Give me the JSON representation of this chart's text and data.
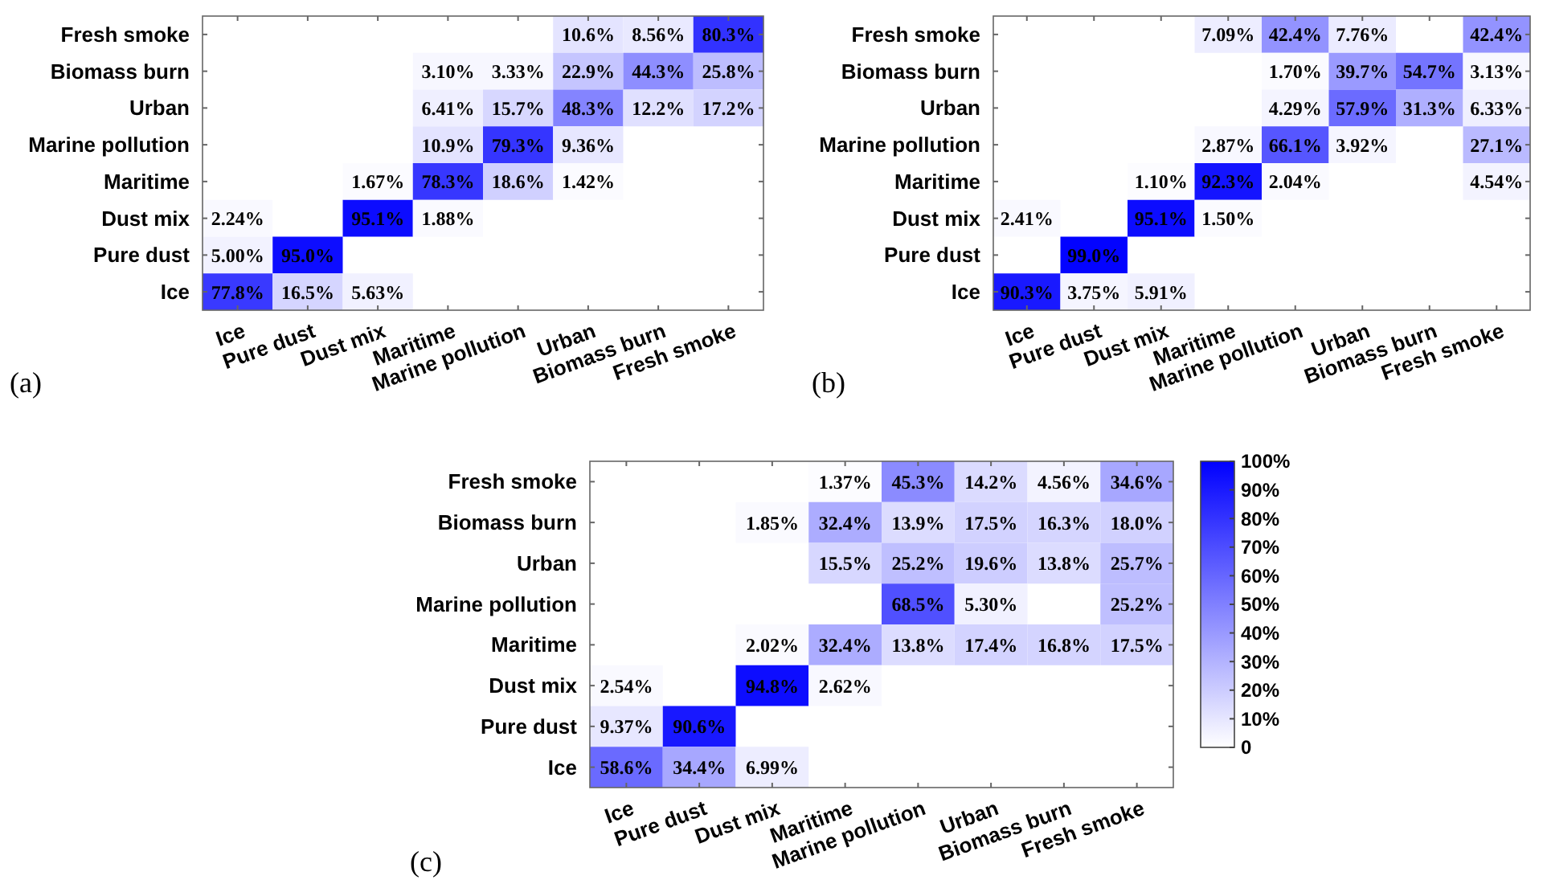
{
  "chart_data": [
    {
      "type": "heatmap",
      "annotations": [
        "(a)"
      ],
      "categories": [
        "Ice",
        "Pure dust",
        "Dust mix",
        "Maritime",
        "Marine pollution",
        "Urban",
        "Biomass burn",
        "Fresh smoke"
      ],
      "y_categories": [
        "Fresh smoke",
        "Biomass burn",
        "Urban",
        "Marine pollution",
        "Maritime",
        "Dust mix",
        "Pure dust",
        "Ice"
      ],
      "cells": [
        [
          null,
          null,
          null,
          null,
          null,
          10.6,
          8.56,
          80.3
        ],
        [
          null,
          null,
          null,
          3.1,
          3.33,
          22.9,
          44.3,
          25.8
        ],
        [
          null,
          null,
          null,
          6.41,
          15.7,
          48.3,
          12.2,
          17.2
        ],
        [
          null,
          null,
          null,
          10.9,
          79.3,
          9.36,
          null,
          null
        ],
        [
          null,
          null,
          1.67,
          78.3,
          18.6,
          1.42,
          null,
          null
        ],
        [
          2.24,
          null,
          95.1,
          1.88,
          null,
          null,
          null,
          null
        ],
        [
          5.0,
          95.0,
          null,
          null,
          null,
          null,
          null,
          null
        ],
        [
          77.8,
          16.5,
          5.63,
          null,
          null,
          null,
          null,
          null
        ]
      ],
      "cell_labels": [
        [
          null,
          null,
          null,
          null,
          null,
          "10.6%",
          "8.56%",
          "80.3%"
        ],
        [
          null,
          null,
          null,
          "3.10%",
          "3.33%",
          "22.9%",
          "44.3%",
          "25.8%"
        ],
        [
          null,
          null,
          null,
          "6.41%",
          "15.7%",
          "48.3%",
          "12.2%",
          "17.2%"
        ],
        [
          null,
          null,
          null,
          "10.9%",
          "79.3%",
          "9.36%",
          null,
          null
        ],
        [
          null,
          null,
          "1.67%",
          "78.3%",
          "18.6%",
          "1.42%",
          null,
          null
        ],
        [
          "2.24%",
          null,
          "95.1%",
          "1.88%",
          null,
          null,
          null,
          null
        ],
        [
          "5.00%",
          "95.0%",
          null,
          null,
          null,
          null,
          null,
          null
        ],
        [
          "77.8%",
          "16.5%",
          "5.63%",
          null,
          null,
          null,
          null,
          null
        ]
      ]
    },
    {
      "type": "heatmap",
      "annotations": [
        "(b)"
      ],
      "categories": [
        "Ice",
        "Pure dust",
        "Dust mix",
        "Maritime",
        "Marine pollution",
        "Urban",
        "Biomass burn",
        "Fresh smoke"
      ],
      "y_categories": [
        "Fresh smoke",
        "Biomass burn",
        "Urban",
        "Marine pollution",
        "Maritime",
        "Dust mix",
        "Pure dust",
        "Ice"
      ],
      "cells": [
        [
          null,
          null,
          null,
          7.09,
          42.4,
          7.76,
          null,
          42.4
        ],
        [
          null,
          null,
          null,
          null,
          1.7,
          39.7,
          54.7,
          3.13
        ],
        [
          null,
          null,
          null,
          null,
          4.29,
          57.9,
          31.3,
          6.33
        ],
        [
          null,
          null,
          null,
          2.87,
          66.1,
          3.92,
          null,
          27.1
        ],
        [
          null,
          null,
          1.1,
          92.3,
          2.04,
          null,
          null,
          4.54
        ],
        [
          2.41,
          null,
          95.1,
          1.5,
          null,
          null,
          null,
          null
        ],
        [
          null,
          99.0,
          null,
          null,
          null,
          null,
          null,
          null
        ],
        [
          90.3,
          3.75,
          5.91,
          null,
          null,
          null,
          null,
          null
        ]
      ],
      "cell_labels": [
        [
          null,
          null,
          null,
          "7.09%",
          "42.4%",
          "7.76%",
          null,
          "42.4%"
        ],
        [
          null,
          null,
          null,
          null,
          "1.70%",
          "39.7%",
          "54.7%",
          "3.13%"
        ],
        [
          null,
          null,
          null,
          null,
          "4.29%",
          "57.9%",
          "31.3%",
          "6.33%"
        ],
        [
          null,
          null,
          null,
          "2.87%",
          "66.1%",
          "3.92%",
          null,
          "27.1%"
        ],
        [
          null,
          null,
          "1.10%",
          "92.3%",
          "2.04%",
          null,
          null,
          "4.54%"
        ],
        [
          "2.41%",
          null,
          "95.1%",
          "1.50%",
          null,
          null,
          null,
          null
        ],
        [
          null,
          "99.0%",
          null,
          null,
          null,
          null,
          null,
          null
        ],
        [
          "90.3%",
          "3.75%",
          "5.91%",
          null,
          null,
          null,
          null,
          null
        ]
      ]
    },
    {
      "type": "heatmap",
      "annotations": [
        "(c)"
      ],
      "categories": [
        "Ice",
        "Pure dust",
        "Dust mix",
        "Maritime",
        "Marine pollution",
        "Urban",
        "Biomass burn",
        "Fresh smoke"
      ],
      "y_categories": [
        "Fresh smoke",
        "Biomass burn",
        "Urban",
        "Marine pollution",
        "Maritime",
        "Dust mix",
        "Pure dust",
        "Ice"
      ],
      "clim": [
        0,
        100
      ],
      "cticks": [
        0,
        {
          "value": 10,
          "label": "10%"
        },
        {
          "value": 20,
          "label": "20%"
        },
        {
          "value": 30,
          "label": "30%"
        },
        {
          "value": 40,
          "label": "40%"
        },
        {
          "value": 50,
          "label": "50%"
        },
        {
          "value": 60,
          "label": "60%"
        },
        {
          "value": 70,
          "label": "70%"
        },
        {
          "value": 80,
          "label": "80%"
        },
        {
          "value": 90,
          "label": "90%"
        },
        {
          "value": 100,
          "label": "100%"
        }
      ],
      "cells": [
        [
          null,
          null,
          null,
          1.37,
          45.3,
          14.2,
          4.56,
          34.6
        ],
        [
          null,
          null,
          1.85,
          32.4,
          13.9,
          17.5,
          16.3,
          18.0
        ],
        [
          null,
          null,
          null,
          15.5,
          25.2,
          19.6,
          13.8,
          25.7
        ],
        [
          null,
          null,
          null,
          null,
          68.5,
          5.3,
          null,
          25.2
        ],
        [
          null,
          null,
          2.02,
          32.4,
          13.8,
          17.4,
          16.8,
          17.5
        ],
        [
          2.54,
          null,
          94.8,
          2.62,
          null,
          null,
          null,
          null
        ],
        [
          9.37,
          90.6,
          null,
          null,
          null,
          null,
          null,
          null
        ],
        [
          58.6,
          34.4,
          6.99,
          null,
          null,
          null,
          null,
          null
        ]
      ],
      "cell_labels": [
        [
          null,
          null,
          null,
          "1.37%",
          "45.3%",
          "14.2%",
          "4.56%",
          "34.6%"
        ],
        [
          null,
          null,
          "1.85%",
          "32.4%",
          "13.9%",
          "17.5%",
          "16.3%",
          "18.0%"
        ],
        [
          null,
          null,
          null,
          "15.5%",
          "25.2%",
          "19.6%",
          "13.8%",
          "25.7%"
        ],
        [
          null,
          null,
          null,
          null,
          "68.5%",
          "5.30%",
          null,
          "25.2%"
        ],
        [
          null,
          null,
          "2.02%",
          "32.4%",
          "13.8%",
          "17.4%",
          "16.8%",
          "17.5%"
        ],
        [
          "2.54%",
          null,
          "94.8%",
          "2.62%",
          null,
          null,
          null,
          null
        ],
        [
          "9.37%",
          "90.6%",
          null,
          null,
          null,
          null,
          null,
          null
        ],
        [
          "58.6%",
          "34.4%",
          "6.99%",
          null,
          null,
          null,
          null,
          null
        ]
      ]
    }
  ]
}
